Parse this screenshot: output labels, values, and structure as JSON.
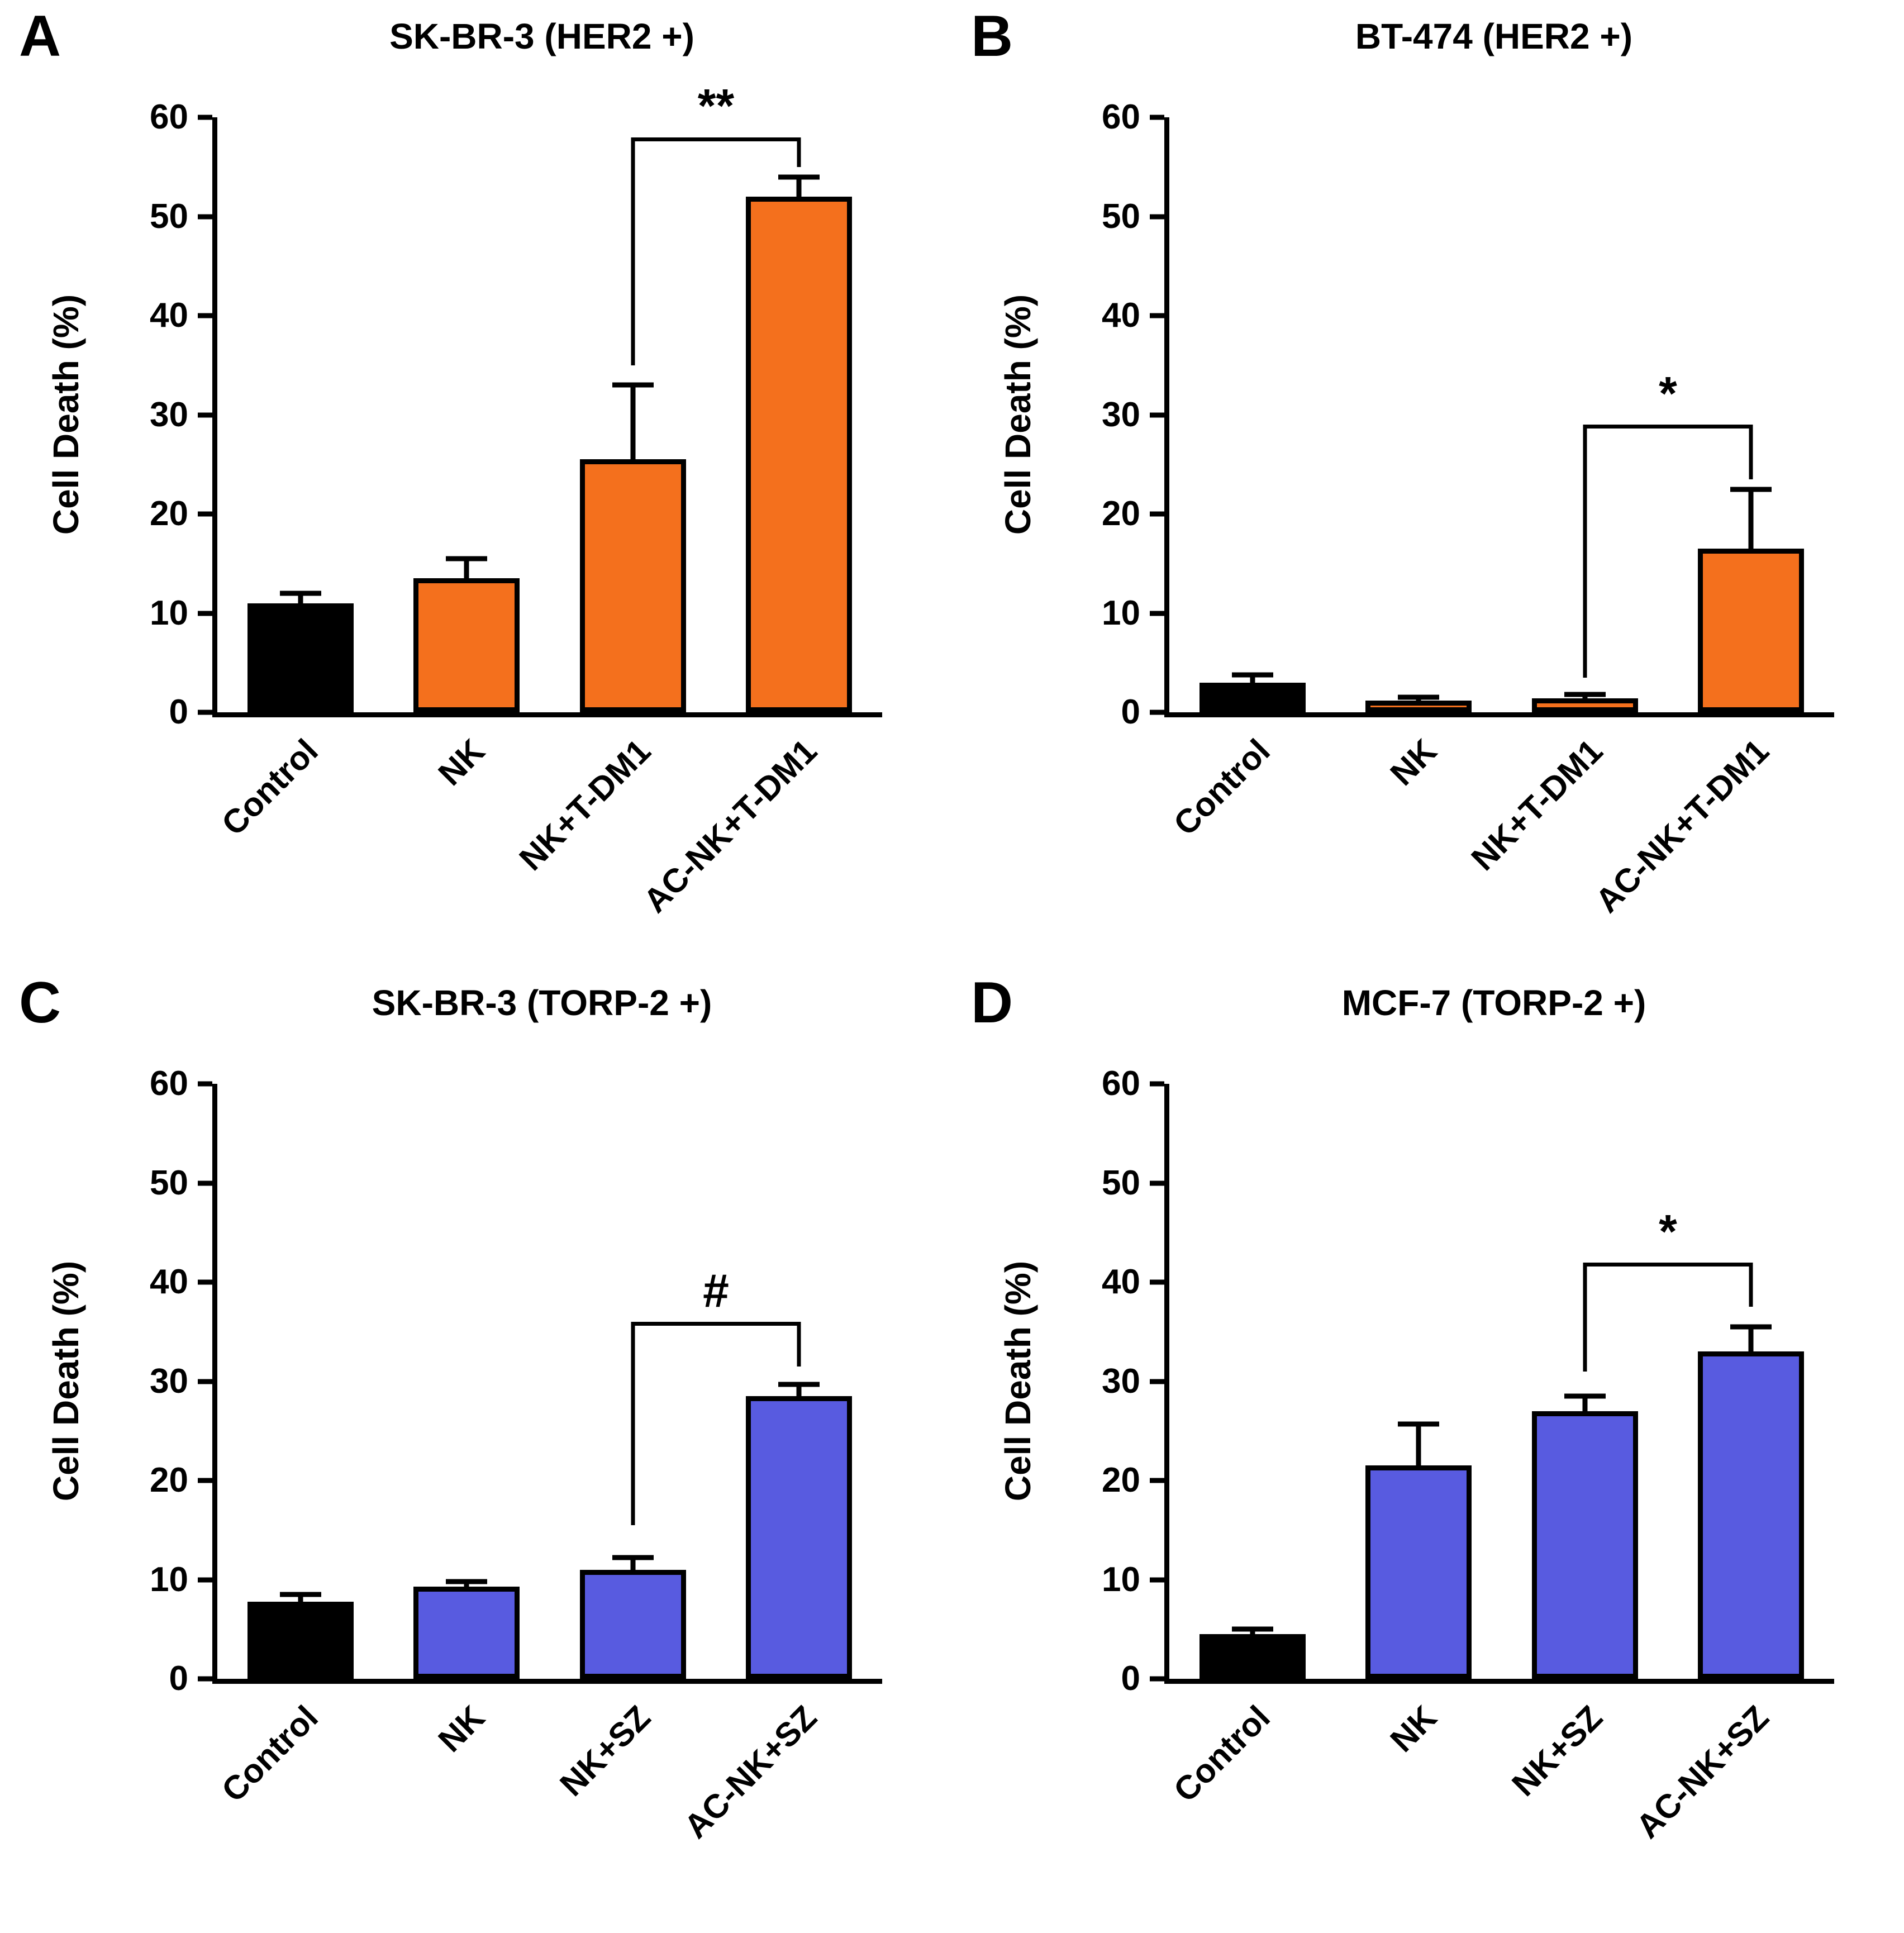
{
  "figure": {
    "background": "#FFFFFF"
  },
  "colors": {
    "control_bar": "#000000",
    "her2_bar": "#F4701D",
    "torp2_bar": "#585BE0",
    "axis": "#000000"
  },
  "chart_data": [
    {
      "type": "bar",
      "panel_label": "A",
      "title": "SK-BR-3 (HER2 +)",
      "ylabel": "Cell Death (%)",
      "ylim": [
        0,
        60
      ],
      "yticks": [
        0,
        10,
        20,
        30,
        40,
        50,
        60
      ],
      "categories": [
        "Control",
        "NK",
        "NK+T-DM1",
        "AC-NK+T-DM1"
      ],
      "values": [
        11,
        13.5,
        25.5,
        52
      ],
      "errors": [
        1,
        2,
        7.5,
        2
      ],
      "bar_colors": [
        "#000000",
        "#F4701D",
        "#F4701D",
        "#F4701D"
      ],
      "significance": {
        "label": "**",
        "from": 2,
        "to": 3,
        "top": 58,
        "left_bottom": 35,
        "right_bottom": 55
      }
    },
    {
      "type": "bar",
      "panel_label": "B",
      "title": "BT-474 (HER2 +)",
      "ylabel": "Cell Death (%)",
      "ylim": [
        0,
        60
      ],
      "yticks": [
        0,
        10,
        20,
        30,
        40,
        50,
        60
      ],
      "categories": [
        "Control",
        "NK",
        "NK+T-DM1",
        "AC-NK+T-DM1"
      ],
      "values": [
        3,
        1.2,
        1.4,
        16.5
      ],
      "errors": [
        0.8,
        0.3,
        0.4,
        6
      ],
      "bar_colors": [
        "#000000",
        "#F4701D",
        "#F4701D",
        "#F4701D"
      ],
      "significance": {
        "label": "*",
        "from": 2,
        "to": 3,
        "top": 29,
        "left_bottom": 3.5,
        "right_bottom": 23.5
      }
    },
    {
      "type": "bar",
      "panel_label": "C",
      "title": "SK-BR-3 (TORP-2 +)",
      "ylabel": "Cell Death (%)",
      "ylim": [
        0,
        60
      ],
      "yticks": [
        0,
        10,
        20,
        30,
        40,
        50,
        60
      ],
      "categories": [
        "Control",
        "NK",
        "NK+SZ",
        "AC-NK+SZ"
      ],
      "values": [
        7.8,
        9.3,
        11,
        28.5
      ],
      "errors": [
        0.7,
        0.5,
        1.2,
        1.2
      ],
      "bar_colors": [
        "#000000",
        "#585BE0",
        "#585BE0",
        "#585BE0"
      ],
      "significance": {
        "label": "#",
        "from": 2,
        "to": 3,
        "top": 36,
        "left_bottom": 15.5,
        "right_bottom": 31.5
      }
    },
    {
      "type": "bar",
      "panel_label": "D",
      "title": "MCF-7 (TORP-2 +)",
      "ylabel": "Cell Death (%)",
      "ylim": [
        0,
        60
      ],
      "yticks": [
        0,
        10,
        20,
        30,
        40,
        50,
        60
      ],
      "categories": [
        "Control",
        "NK",
        "NK+SZ",
        "AC-NK+SZ"
      ],
      "values": [
        4.5,
        21.5,
        27,
        33
      ],
      "errors": [
        0.5,
        4.2,
        1.5,
        2.5
      ],
      "bar_colors": [
        "#000000",
        "#585BE0",
        "#585BE0",
        "#585BE0"
      ],
      "significance": {
        "label": "*",
        "from": 2,
        "to": 3,
        "top": 42,
        "left_bottom": 31,
        "right_bottom": 37.5
      }
    }
  ]
}
